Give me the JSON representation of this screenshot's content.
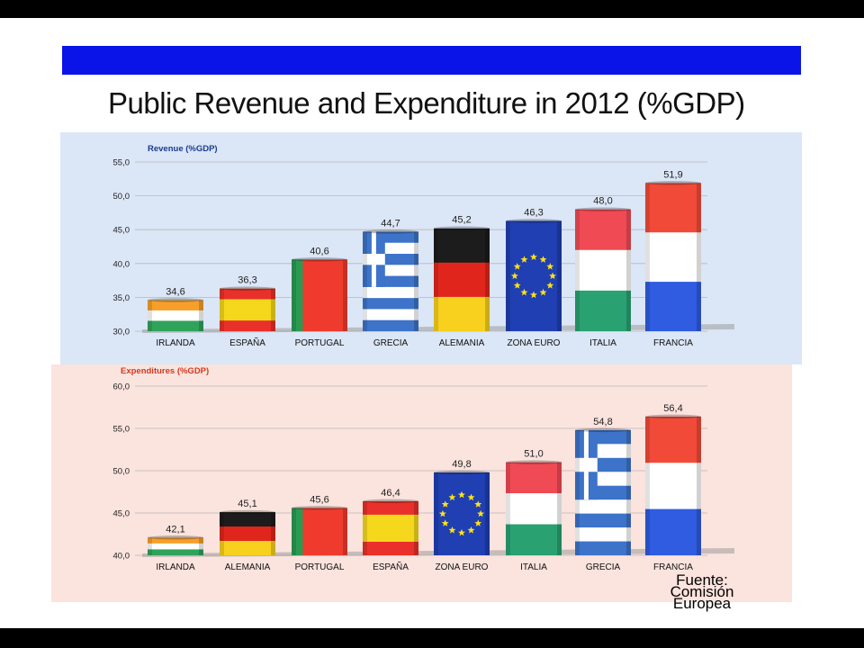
{
  "slide": {
    "title": "Public Revenue and Expenditure in 2012 (%GDP)",
    "source_lines": [
      "Fuente:",
      "Comisión",
      "Europea"
    ]
  },
  "colors": {
    "header_band": "#0a14e8",
    "panel_revenue": "#dbe6f6",
    "panel_expenditure": "#fbe3de",
    "title_revenue": "#1a3c8c",
    "title_expenditure": "#d23a1e"
  },
  "chart_data": [
    {
      "type": "bar",
      "title": "Revenue (%GDP)",
      "xlabel": "",
      "ylabel": "",
      "ylim": [
        30,
        55
      ],
      "yticks": [
        "30,0",
        "35,0",
        "40,0",
        "45,0",
        "50,0",
        "55,0"
      ],
      "grid": true,
      "categories": [
        "IRLANDA",
        "ESPAÑA",
        "PORTUGAL",
        "GRECIA",
        "ALEMANIA",
        "ZONA EURO",
        "ITALIA",
        "FRANCIA"
      ],
      "values": [
        34.6,
        36.3,
        40.6,
        44.7,
        45.2,
        46.3,
        48.0,
        51.9
      ],
      "value_labels": [
        "34,6",
        "36,3",
        "40,6",
        "44,7",
        "45,2",
        "46,3",
        "48,0",
        "51,9"
      ],
      "flags": [
        "ireland",
        "spain",
        "portugal",
        "greece",
        "germany",
        "eu",
        "italy",
        "france"
      ]
    },
    {
      "type": "bar",
      "title": "Expenditures (%GDP)",
      "xlabel": "",
      "ylabel": "",
      "ylim": [
        40,
        60
      ],
      "yticks": [
        "40,0",
        "45,0",
        "50,0",
        "55,0",
        "60,0"
      ],
      "grid": true,
      "categories": [
        "IRLANDA",
        "ALEMANIA",
        "PORTUGAL",
        "ESPAÑA",
        "ZONA EURO",
        "ITALIA",
        "GRECIA",
        "FRANCIA"
      ],
      "values": [
        42.1,
        45.1,
        45.6,
        46.4,
        49.8,
        51.0,
        54.8,
        56.4
      ],
      "value_labels": [
        "42,1",
        "45,1",
        "45,6",
        "46,4",
        "49,8",
        "51,0",
        "54,8",
        "56,4"
      ],
      "flags": [
        "ireland",
        "germany",
        "portugal",
        "spain",
        "eu",
        "italy",
        "greece",
        "france"
      ]
    }
  ]
}
